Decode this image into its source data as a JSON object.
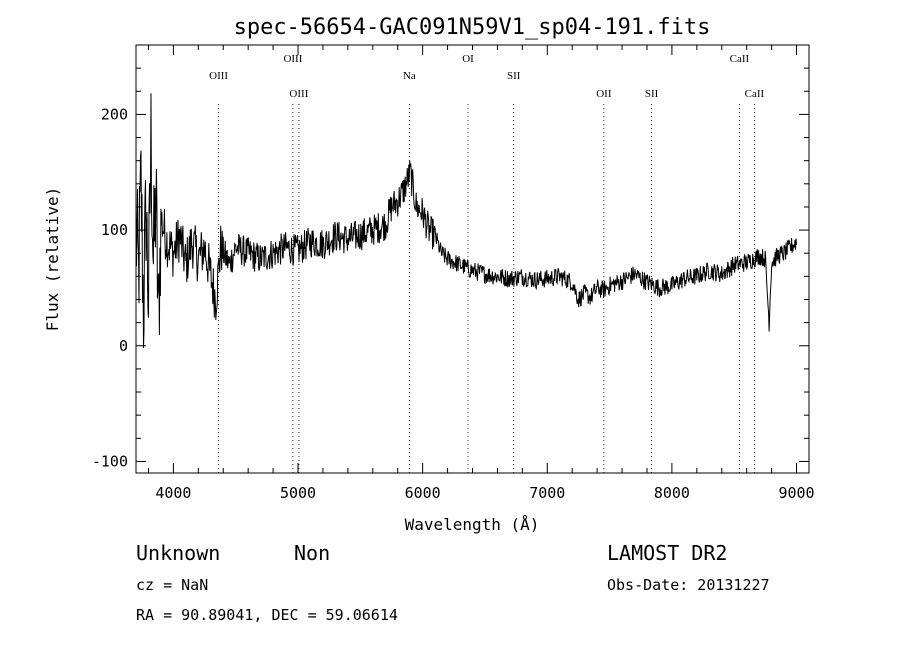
{
  "chart_data": {
    "type": "line",
    "title": "spec-56654-GAC091N59V1_sp04-191.fits",
    "xlabel": "Wavelength (Å)",
    "ylabel": "Flux (relative)",
    "xlim": [
      3700,
      9100
    ],
    "ylim": [
      -110,
      260
    ],
    "xticks": [
      4000,
      5000,
      6000,
      7000,
      8000,
      9000
    ],
    "yticks": [
      -100,
      0,
      100,
      200
    ],
    "spectral_lines": [
      {
        "name": "OIII",
        "wavelength": 4363,
        "row": "high"
      },
      {
        "name": "OIII",
        "wavelength": 4959,
        "row": "top"
      },
      {
        "name": "OIII",
        "wavelength": 5007,
        "row": "low"
      },
      {
        "name": "Na",
        "wavelength": 5893,
        "row": "high"
      },
      {
        "name": "OI",
        "wavelength": 6364,
        "row": "top"
      },
      {
        "name": "SII",
        "wavelength": 6731,
        "row": "high"
      },
      {
        "name": "OII",
        "wavelength": 7454,
        "row": "low"
      },
      {
        "name": "SII",
        "wavelength": 7837,
        "row": "low"
      },
      {
        "name": "CaII",
        "wavelength": 8542,
        "row": "top"
      },
      {
        "name": "CaII",
        "wavelength": 8662,
        "row": "low"
      }
    ],
    "series": [
      {
        "x": [
          3700,
          3720,
          3740,
          3760,
          3780,
          3800,
          3820,
          3840,
          3860,
          3880,
          3900,
          3950,
          4000,
          4050,
          4100,
          4150,
          4200,
          4250,
          4300,
          4340,
          4380,
          4450,
          4500,
          4600,
          4700,
          4800,
          4900,
          5000,
          5100,
          5200,
          5300,
          5400,
          5500,
          5600,
          5700,
          5750,
          5800,
          5850,
          5900,
          5950,
          6000,
          6050,
          6100,
          6150,
          6200,
          6300,
          6400,
          6500,
          6600,
          6700,
          6800,
          6900,
          7000,
          7100,
          7200,
          7250,
          7300,
          7350,
          7400,
          7450,
          7500,
          7600,
          7700,
          7800,
          7900,
          8000,
          8100,
          8200,
          8300,
          8400,
          8500,
          8600,
          8700,
          8750,
          8780,
          8800,
          8850,
          8900,
          8950,
          9000
        ],
        "y": [
          100,
          60,
          140,
          30,
          120,
          40,
          180,
          70,
          130,
          20,
          110,
          90,
          80,
          95,
          70,
          90,
          75,
          85,
          60,
          40,
          85,
          70,
          85,
          80,
          75,
          80,
          85,
          82,
          90,
          88,
          95,
          92,
          96,
          100,
          105,
          120,
          125,
          135,
          150,
          120,
          115,
          100,
          95,
          80,
          75,
          70,
          65,
          62,
          60,
          58,
          60,
          57,
          58,
          60,
          55,
          40,
          45,
          42,
          50,
          48,
          52,
          56,
          62,
          55,
          50,
          52,
          58,
          60,
          65,
          62,
          70,
          72,
          78,
          75,
          20,
          72,
          78,
          80,
          85,
          90
        ]
      }
    ]
  },
  "footer": {
    "class_label": "Unknown",
    "subclass_label": "Non",
    "survey": "LAMOST DR2",
    "cz": "cz = NaN",
    "obs_date": "Obs-Date: 20131227",
    "radec": "RA =  90.89041, DEC =  59.06614"
  }
}
